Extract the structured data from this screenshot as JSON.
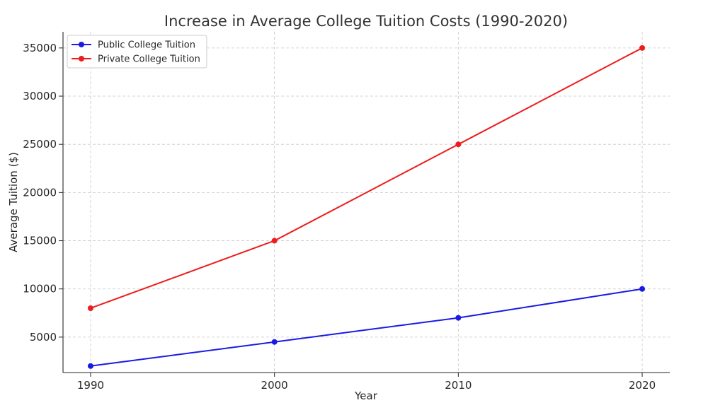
{
  "chart_data": {
    "type": "line",
    "title": "Increase in Average College Tuition Costs (1990-2020)",
    "xlabel": "Year",
    "ylabel": "Average Tuition ($)",
    "x": [
      1990,
      2000,
      2010,
      2020
    ],
    "x_tick_labels": [
      "1990",
      "2000",
      "2010",
      "2020"
    ],
    "y_tick_labels": [
      "5000",
      "10000",
      "15000",
      "20000",
      "25000",
      "30000",
      "35000"
    ],
    "xlim": [
      1988.5,
      2021.5
    ],
    "ylim": [
      1325,
      36675
    ],
    "grid": true,
    "legend_position": "top-left",
    "series": [
      {
        "name": "Public College Tuition",
        "color": "#1a1ae6",
        "marker": "circle",
        "values": [
          2000,
          4500,
          7000,
          10000
        ]
      },
      {
        "name": "Private College Tuition",
        "color": "#ee1c1c",
        "marker": "circle",
        "values": [
          8000,
          15000,
          25000,
          35000
        ]
      }
    ]
  }
}
